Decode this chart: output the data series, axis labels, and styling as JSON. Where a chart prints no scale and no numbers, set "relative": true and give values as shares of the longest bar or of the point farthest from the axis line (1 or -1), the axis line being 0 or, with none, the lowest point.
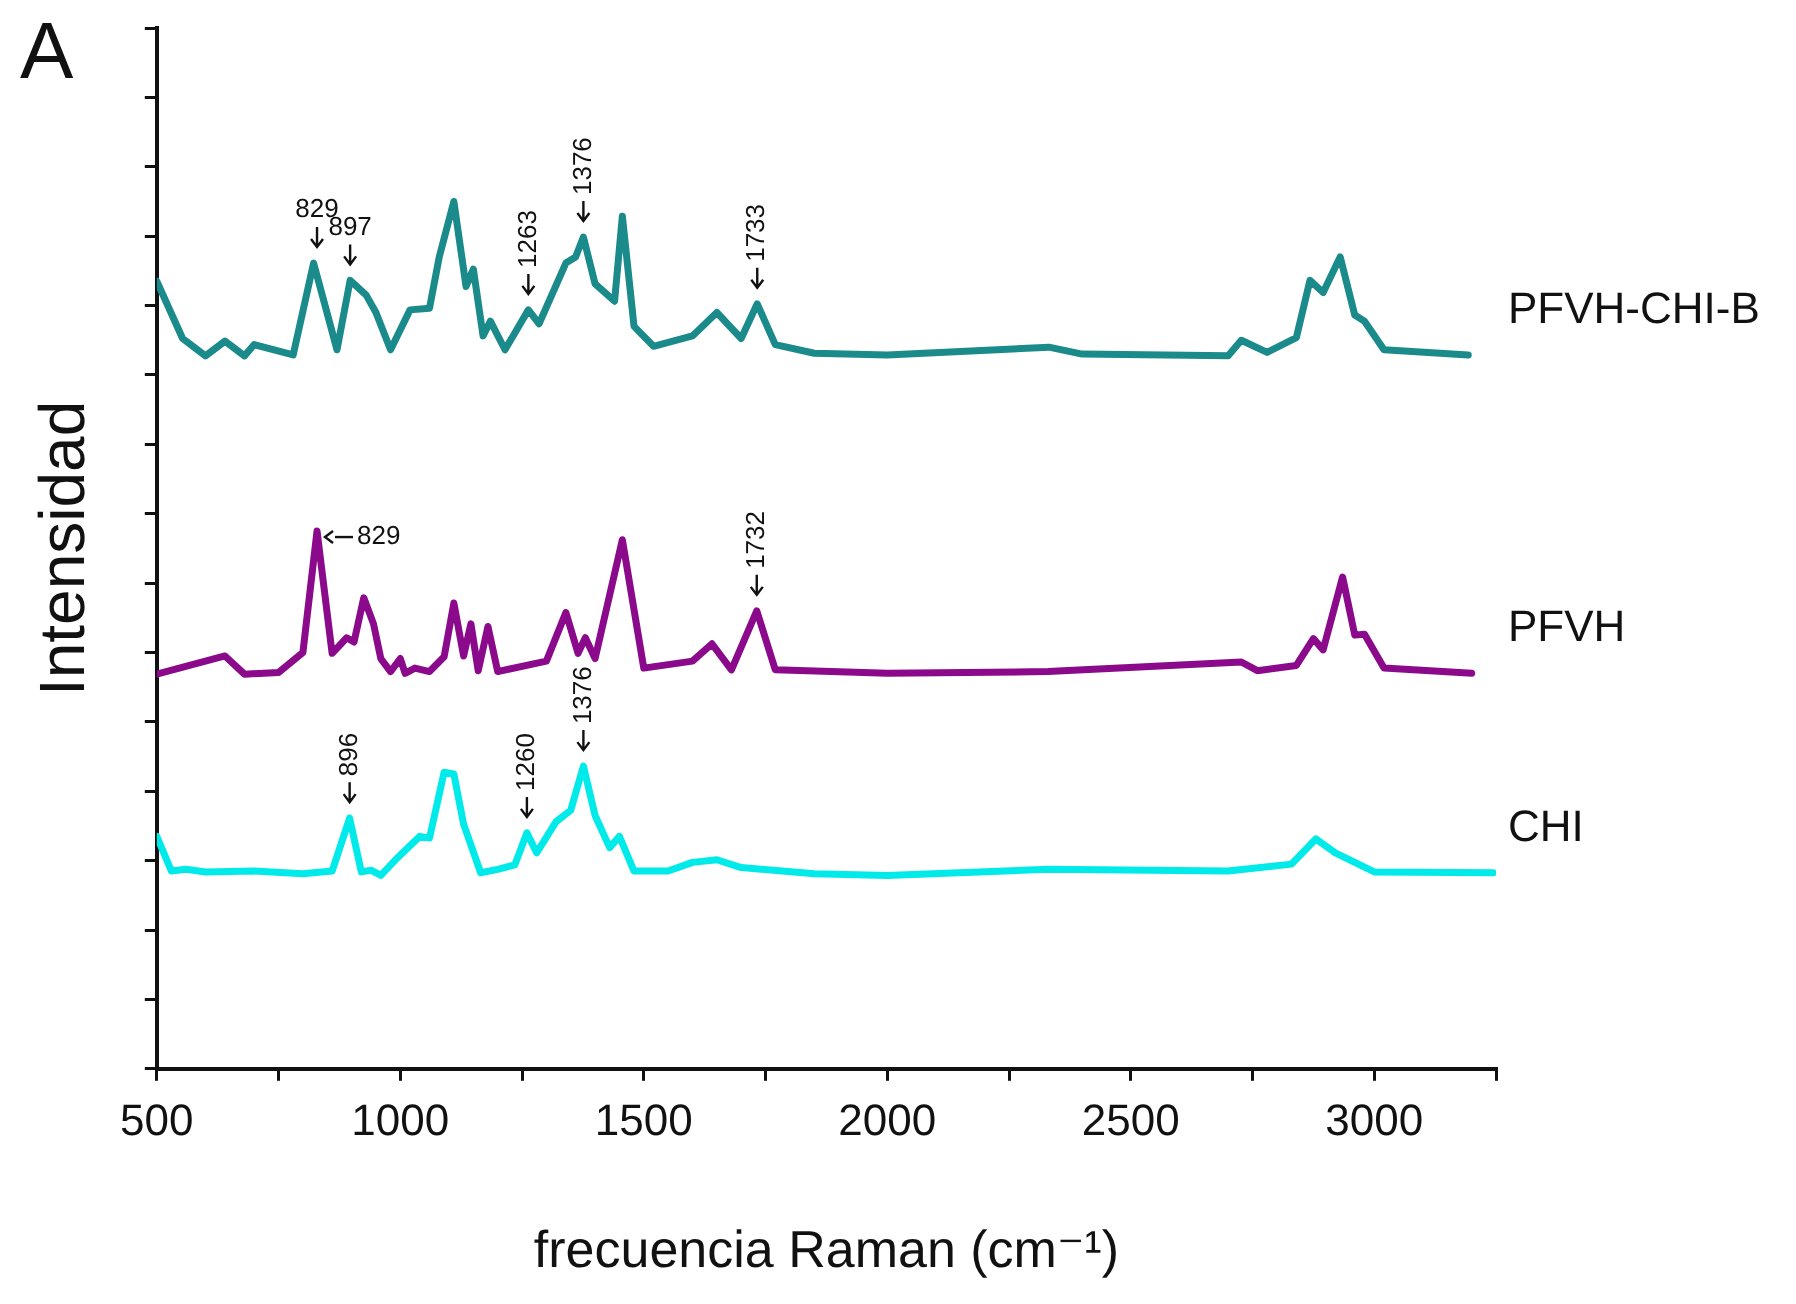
{
  "chart_data": {
    "type": "line",
    "relative": true,
    "xlabel": "frecuencia Raman (cm⁻¹)",
    "ylabel": "Intensidad",
    "xlim": [
      500,
      3250
    ],
    "xticks": [
      500,
      {
        "value": 750,
        "label": null
      },
      1000,
      {
        "value": 1250,
        "label": null
      },
      1500,
      {
        "value": 1750,
        "label": null
      },
      2000,
      {
        "value": 2250,
        "label": null
      },
      2500,
      {
        "value": 2750,
        "label": null
      },
      3000,
      {
        "value": 3250,
        "label": null
      }
    ],
    "tick_labels": "x",
    "grid": false,
    "legend": false,
    "marker": "none",
    "line_style": "solid",
    "series": [
      {
        "name": "PFVH-CHI-B",
        "color": "#1b8a8a",
        "x": [
          500,
          553,
          600,
          640,
          680,
          700,
          780,
          822,
          870,
          897,
          930,
          950,
          980,
          1020,
          1060,
          1080,
          1110,
          1135,
          1150,
          1170,
          1185,
          1215,
          1263,
          1285,
          1340,
          1360,
          1376,
          1400,
          1440,
          1456,
          1480,
          1520,
          1600,
          1650,
          1700,
          1733,
          1770,
          1850,
          2000,
          2332,
          2400,
          2700,
          2727,
          2780,
          2840,
          2868,
          2895,
          2930,
          2960,
          2980,
          3020,
          3193
        ],
        "values": [
          0.908,
          0.842,
          0.822,
          0.839,
          0.822,
          0.835,
          0.823,
          0.929,
          0.829,
          0.909,
          0.892,
          0.872,
          0.829,
          0.875,
          0.877,
          0.936,
          1,
          0.902,
          0.922,
          0.845,
          0.862,
          0.829,
          0.875,
          0.859,
          0.929,
          0.936,
          0.959,
          0.905,
          0.885,
          0.983,
          0.856,
          0.833,
          0.845,
          0.872,
          0.842,
          0.882,
          0.835,
          0.825,
          0.823,
          0.832,
          0.824,
          0.822,
          0.84,
          0.826,
          0.843,
          0.909,
          0.895,
          0.936,
          0.869,
          0.862,
          0.829,
          0.823
        ]
      },
      {
        "name": "PFVH",
        "color": "#8b0a8b",
        "x": [
          500,
          640,
          680,
          750,
          800,
          829,
          860,
          890,
          905,
          925,
          945,
          960,
          980,
          1000,
          1010,
          1030,
          1060,
          1090,
          1110,
          1130,
          1145,
          1160,
          1180,
          1200,
          1300,
          1340,
          1365,
          1380,
          1400,
          1456,
          1500,
          1600,
          1640,
          1680,
          1732,
          1770,
          2000,
          2330,
          2727,
          2760,
          2840,
          2875,
          2895,
          2935,
          2960,
          2980,
          3020,
          3200
        ],
        "values": [
          0.455,
          0.476,
          0.455,
          0.457,
          0.48,
          0.62,
          0.479,
          0.497,
          0.492,
          0.543,
          0.513,
          0.473,
          0.458,
          0.473,
          0.456,
          0.462,
          0.458,
          0.475,
          0.537,
          0.476,
          0.513,
          0.459,
          0.51,
          0.458,
          0.47,
          0.526,
          0.479,
          0.497,
          0.473,
          0.61,
          0.462,
          0.47,
          0.49,
          0.46,
          0.528,
          0.46,
          0.456,
          0.458,
          0.469,
          0.459,
          0.465,
          0.496,
          0.483,
          0.567,
          0.5,
          0.501,
          0.462,
          0.456
        ]
      },
      {
        "name": "CHI",
        "color": "#00eaea",
        "x": [
          500,
          530,
          560,
          600,
          700,
          800,
          860,
          896,
          920,
          940,
          960,
          990,
          1040,
          1060,
          1090,
          1110,
          1130,
          1165,
          1200,
          1235,
          1260,
          1280,
          1320,
          1350,
          1376,
          1400,
          1430,
          1450,
          1480,
          1550,
          1600,
          1650,
          1700,
          1850,
          2000,
          2330,
          2700,
          2830,
          2880,
          2920,
          3000,
          3244
        ],
        "values": [
          0.268,
          0.228,
          0.23,
          0.227,
          0.228,
          0.225,
          0.228,
          0.289,
          0.227,
          0.229,
          0.223,
          0.241,
          0.268,
          0.266,
          0.342,
          0.34,
          0.282,
          0.226,
          0.23,
          0.235,
          0.272,
          0.249,
          0.285,
          0.298,
          0.349,
          0.292,
          0.255,
          0.268,
          0.228,
          0.228,
          0.238,
          0.241,
          0.232,
          0.225,
          0.223,
          0.23,
          0.228,
          0.236,
          0.265,
          0.249,
          0.227,
          0.226
        ]
      }
    ],
    "annotations": [
      "A",
      {
        "text": "829",
        "x": 829,
        "y": 0.929
      },
      {
        "text": "897",
        "x": 897,
        "y": 0.909
      },
      {
        "text": "1263",
        "x": 1263,
        "y": 0.875
      },
      {
        "text": "1376",
        "x": 1376,
        "y": 0.959
      },
      {
        "text": "1733",
        "x": 1733,
        "y": 0.882
      },
      {
        "text": "829",
        "x": 829,
        "y": 0.62
      },
      {
        "text": "1732",
        "x": 1732,
        "y": 0.528
      },
      {
        "text": "896",
        "x": 896,
        "y": 0.289
      },
      {
        "text": "1260",
        "x": 1260,
        "y": 0.272
      },
      {
        "text": "1376",
        "x": 1376,
        "y": 0.349
      }
    ]
  }
}
